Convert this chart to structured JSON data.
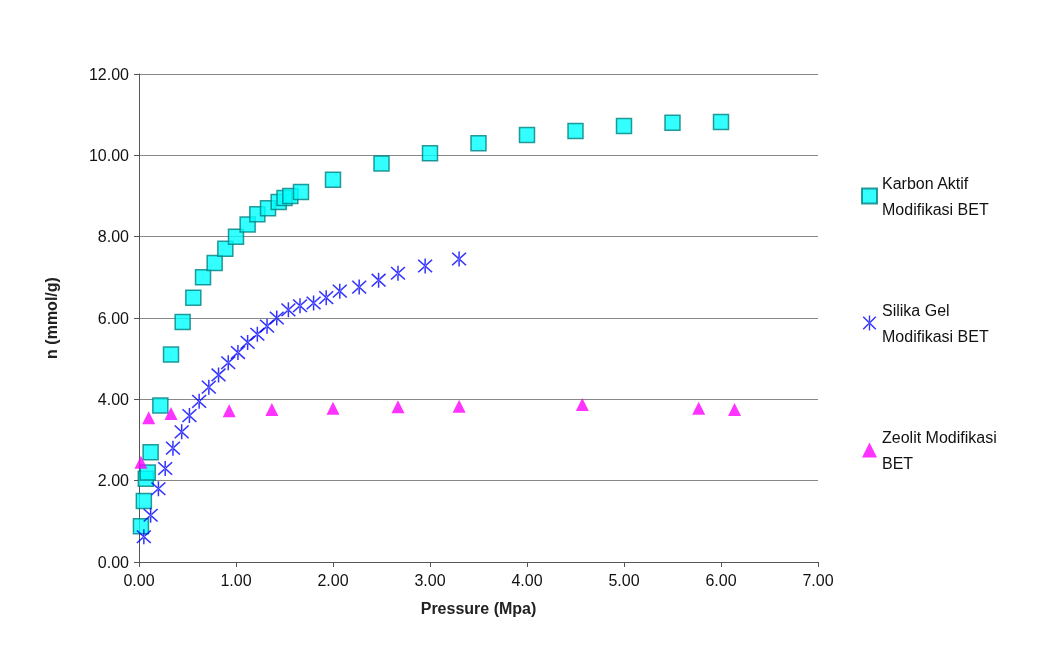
{
  "chart_data": {
    "type": "scatter",
    "xlabel": "Pressure (Mpa)",
    "ylabel": "n (mmol/g)",
    "xlim": [
      0,
      7
    ],
    "xticks": [
      {
        "value": 0,
        "label": "0.00"
      },
      {
        "value": 1,
        "label": "1.00"
      },
      {
        "value": 2,
        "label": "2.00"
      },
      {
        "value": 3,
        "label": "3.00"
      },
      {
        "value": 4,
        "label": "4.00"
      },
      {
        "value": 5,
        "label": "5.00"
      },
      {
        "value": 6,
        "label": "6.00"
      },
      {
        "value": 7,
        "label": "7.00"
      }
    ],
    "ylim": [
      0,
      12
    ],
    "yticks": [
      {
        "value": 0,
        "label": "0.00"
      },
      {
        "value": 2,
        "label": "2.00"
      },
      {
        "value": 4,
        "label": "4.00"
      },
      {
        "value": 6,
        "label": "6.00"
      },
      {
        "value": 8,
        "label": "8.00"
      },
      {
        "value": 10,
        "label": "10.00"
      },
      {
        "value": 12,
        "label": "12.00"
      }
    ],
    "grid": "y",
    "legend": "right",
    "series": [
      {
        "name": "Karbon Aktif Modifikasi BET",
        "color": "#00ffff",
        "marker": "square",
        "x": [
          0.02,
          0.05,
          0.07,
          0.09,
          0.12,
          0.22,
          0.33,
          0.45,
          0.56,
          0.66,
          0.78,
          0.89,
          1.0,
          1.12,
          1.22,
          1.33,
          1.44,
          1.5,
          1.56,
          1.67,
          2.0,
          2.5,
          3.0,
          3.5,
          4.0,
          4.5,
          5.0,
          5.5,
          6.0
        ],
        "values": [
          0.88,
          1.5,
          2.05,
          2.2,
          2.7,
          3.85,
          5.1,
          5.9,
          6.5,
          7.0,
          7.35,
          7.7,
          8.0,
          8.3,
          8.55,
          8.7,
          8.85,
          8.95,
          9.0,
          9.1,
          9.4,
          9.8,
          10.05,
          10.3,
          10.5,
          10.6,
          10.72,
          10.8,
          10.82
        ]
      },
      {
        "name": "Silika Gel Modifikasi BET",
        "color": "#0000ff",
        "marker": "cross",
        "x": [
          0.05,
          0.12,
          0.2,
          0.27,
          0.35,
          0.44,
          0.52,
          0.62,
          0.72,
          0.82,
          0.92,
          1.02,
          1.12,
          1.22,
          1.32,
          1.42,
          1.54,
          1.66,
          1.8,
          1.93,
          2.07,
          2.27,
          2.47,
          2.67,
          2.95,
          3.3
        ],
        "values": [
          0.62,
          1.15,
          1.8,
          2.3,
          2.8,
          3.2,
          3.6,
          3.95,
          4.3,
          4.6,
          4.9,
          5.15,
          5.4,
          5.6,
          5.8,
          6.0,
          6.2,
          6.3,
          6.37,
          6.5,
          6.66,
          6.76,
          6.93,
          7.1,
          7.28,
          7.45
        ]
      },
      {
        "name": "Zeolit Modifikasi BET",
        "color": "#ff00ff",
        "marker": "triangle",
        "x": [
          0.02,
          0.1,
          0.33,
          0.93,
          1.37,
          2.0,
          2.67,
          3.3,
          4.57,
          5.77,
          6.14
        ],
        "values": [
          2.45,
          3.55,
          3.65,
          3.72,
          3.75,
          3.78,
          3.82,
          3.83,
          3.87,
          3.78,
          3.75
        ]
      }
    ]
  }
}
